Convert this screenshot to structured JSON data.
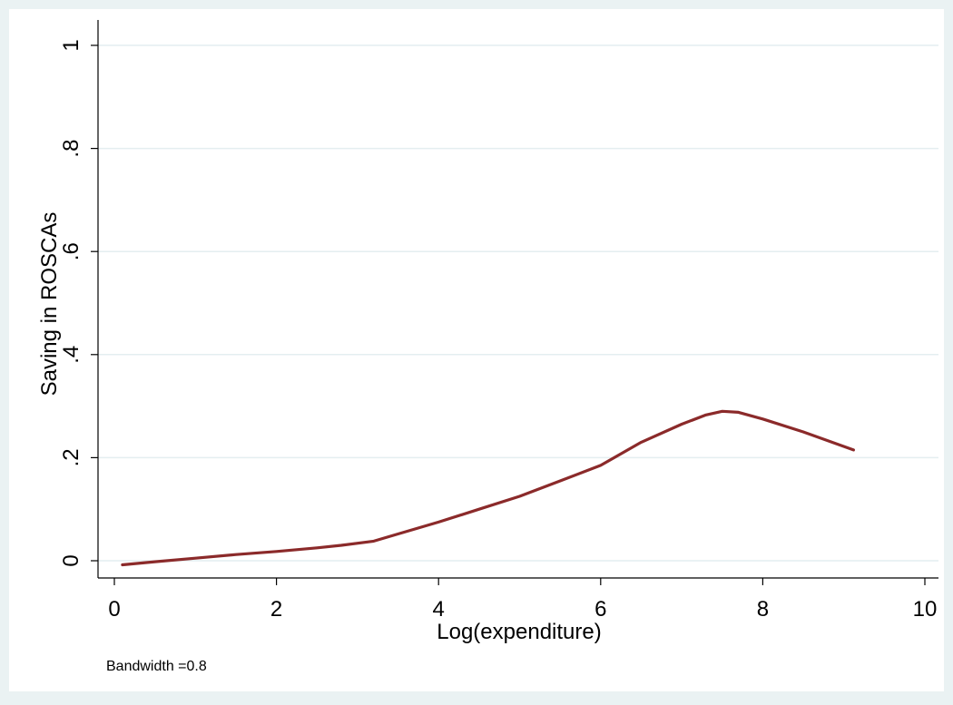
{
  "chart_data": {
    "type": "line",
    "title": "",
    "xlabel": "Log(expenditure)",
    "ylabel": "Saving in ROSCAs",
    "note": "Bandwidth =0.8",
    "xlim": [
      0,
      10
    ],
    "ylim": [
      0,
      1
    ],
    "x_ticks": [
      0,
      2,
      4,
      6,
      8,
      10
    ],
    "x_tick_labels": [
      "0",
      "2",
      "4",
      "6",
      "8",
      "10"
    ],
    "y_ticks": [
      0,
      0.2,
      0.4,
      0.6,
      0.8,
      1
    ],
    "y_tick_labels": [
      "0",
      ".2",
      ".4",
      ".6",
      ".8",
      "1"
    ],
    "grid": "horizontal",
    "colors": {
      "line": "#8b2a2a",
      "outer_background": "#eaf2f3",
      "plot_background": "#ffffff",
      "grid": "#e4eef0"
    },
    "series": [
      {
        "x": [
          0.1,
          0.5,
          1.0,
          1.5,
          2.0,
          2.5,
          2.8,
          3.2,
          3.5,
          4.0,
          4.5,
          5.0,
          5.5,
          6.0,
          6.5,
          7.0,
          7.3,
          7.5,
          7.7,
          8.0,
          8.5,
          9.12
        ],
        "y": [
          -0.008,
          -0.002,
          0.005,
          0.012,
          0.018,
          0.025,
          0.03,
          0.038,
          0.052,
          0.075,
          0.1,
          0.125,
          0.155,
          0.185,
          0.23,
          0.265,
          0.283,
          0.29,
          0.288,
          0.275,
          0.25,
          0.215
        ]
      }
    ]
  }
}
